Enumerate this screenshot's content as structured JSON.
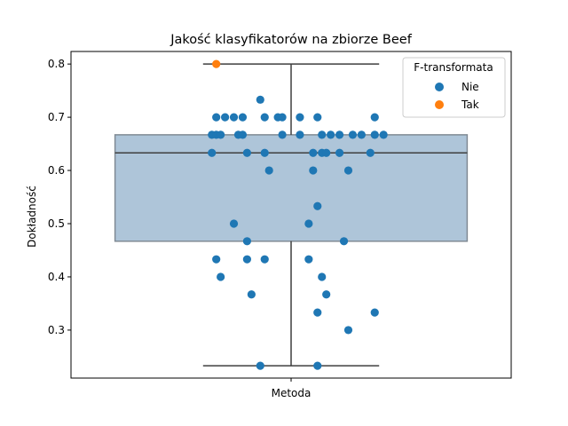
{
  "chart_data": {
    "type": "box_swarm",
    "title": "Jakość klasyfikatorów na zbiorze Beef",
    "xlabel": "",
    "ylabel": "Dokładność",
    "categories": [
      "Metoda"
    ],
    "ylim": [
      0.2098,
      0.8236
    ],
    "yticks": [
      0.3,
      0.4,
      0.5,
      0.6,
      0.7,
      0.8
    ],
    "ytick_labels": [
      "0.3",
      "0.4",
      "0.5",
      "0.6",
      "0.7",
      "0.8"
    ],
    "grid": false,
    "legend": {
      "title": "F-transformata",
      "position": "top-right",
      "entries": [
        "Nie",
        "Tak"
      ]
    },
    "colors": {
      "Nie": "#1f77b4",
      "Tak": "#ff7f0e",
      "box_fill": "#aec5d9",
      "box_edge": "#3f3f3f"
    },
    "box": {
      "whisker_low": 0.233,
      "q1": 0.467,
      "median": 0.633,
      "q3": 0.667,
      "whisker_high": 0.8
    },
    "series": [
      {
        "name": "Nie",
        "values": [
          0.733,
          0.7,
          0.7,
          0.7,
          0.7,
          0.7,
          0.7,
          0.7,
          0.7,
          0.7,
          0.7,
          0.667,
          0.667,
          0.667,
          0.667,
          0.667,
          0.667,
          0.667,
          0.667,
          0.667,
          0.667,
          0.667,
          0.667,
          0.667,
          0.667,
          0.633,
          0.633,
          0.633,
          0.633,
          0.633,
          0.633,
          0.633,
          0.633,
          0.6,
          0.6,
          0.6,
          0.533,
          0.5,
          0.5,
          0.467,
          0.467,
          0.433,
          0.433,
          0.433,
          0.433,
          0.4,
          0.4,
          0.367,
          0.367,
          0.333,
          0.333,
          0.3,
          0.233,
          0.233
        ],
        "x_offsets": [
          -0.07,
          -0.17,
          -0.15,
          -0.13,
          -0.11,
          -0.06,
          -0.03,
          -0.02,
          0.02,
          0.06,
          0.19,
          -0.18,
          -0.17,
          -0.16,
          -0.12,
          -0.11,
          -0.02,
          0.02,
          0.07,
          0.09,
          0.11,
          0.14,
          0.16,
          0.19,
          0.21,
          -0.18,
          -0.1,
          -0.06,
          0.05,
          0.07,
          0.08,
          0.11,
          0.18,
          -0.05,
          0.05,
          0.13,
          0.06,
          -0.13,
          0.04,
          -0.1,
          0.12,
          -0.17,
          -0.1,
          -0.06,
          0.04,
          -0.16,
          0.07,
          -0.09,
          0.08,
          0.06,
          0.19,
          0.13,
          -0.07,
          0.06
        ]
      },
      {
        "name": "Tak",
        "values": [
          0.8
        ],
        "x_offsets": [
          -0.17
        ]
      }
    ]
  }
}
